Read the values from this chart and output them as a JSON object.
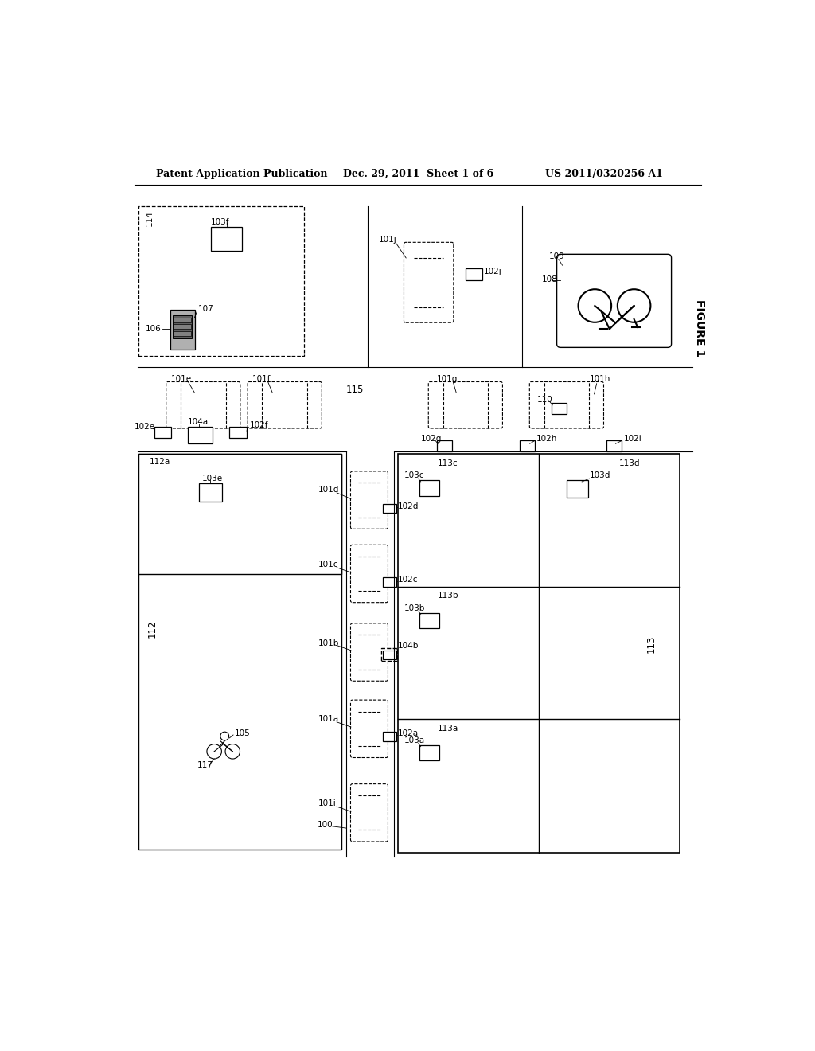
{
  "title_left": "Patent Application Publication",
  "title_mid": "Dec. 29, 2011  Sheet 1 of 6",
  "title_right": "US 2011/0320256 A1",
  "figure_label": "FIGURE 1",
  "bg_color": "#ffffff",
  "line_color": "#000000",
  "header_fontsize": 9,
  "label_fontsize": 7.5
}
